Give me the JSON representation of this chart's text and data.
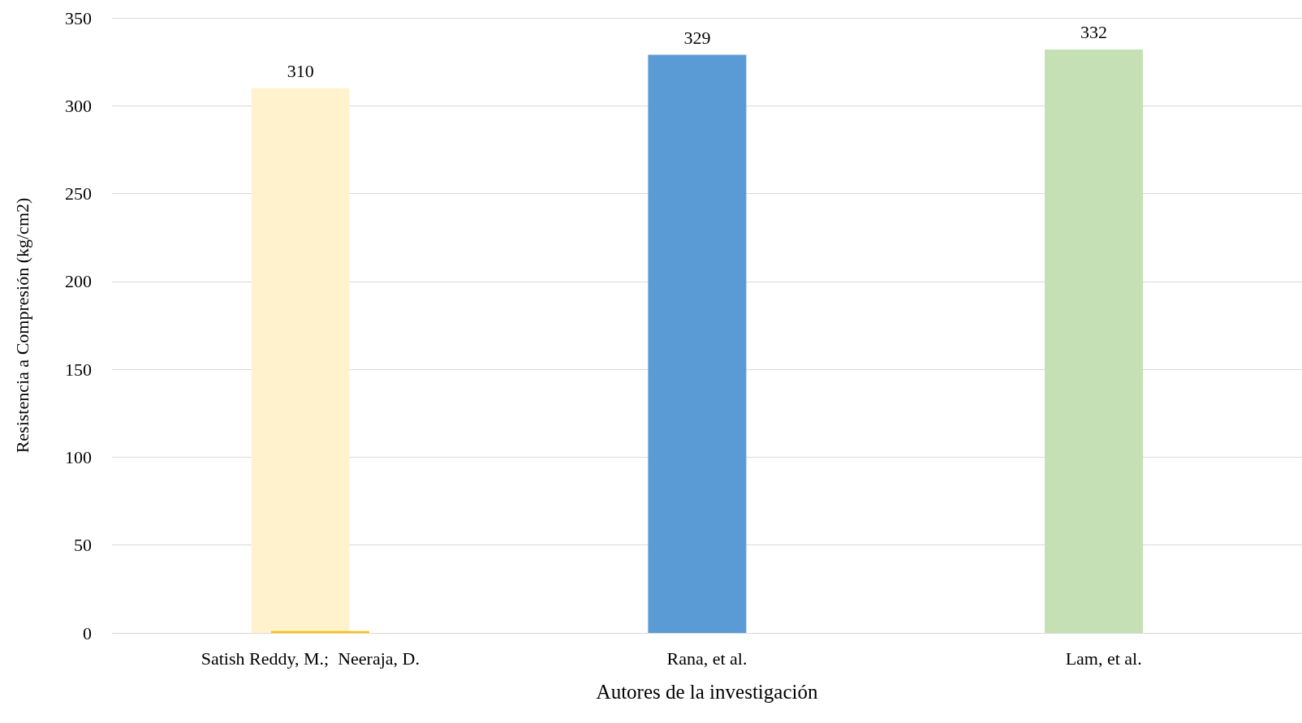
{
  "chart_data": {
    "type": "bar",
    "xlabel": "Autores de la investigación",
    "ylabel": "Resistencia a Compresión (kg/cm2)",
    "categories": [
      "Satish Reddy, M.;  Neeraja, D.",
      "Rana, et al.",
      "Lam, et al."
    ],
    "series": [
      {
        "colors": [
          "#fff2cc",
          "#5b9bd5",
          "#c5e0b4"
        ],
        "values": [
          310,
          329,
          332
        ],
        "value_labels": [
          "310",
          "329",
          "332"
        ]
      },
      {
        "color": "#ffc000",
        "values": [
          1,
          null,
          null
        ]
      }
    ],
    "ylim": [
      0,
      350
    ],
    "yticks": [
      0,
      50,
      100,
      150,
      200,
      250,
      300,
      350
    ],
    "grid": "y"
  }
}
